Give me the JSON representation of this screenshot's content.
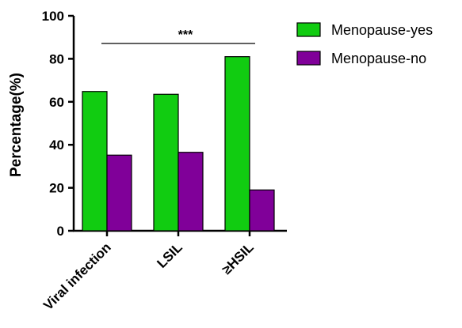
{
  "chart_data": {
    "type": "bar",
    "title": "",
    "xlabel": "",
    "ylabel": "Percentage(%)",
    "ylim": [
      0,
      100
    ],
    "yticks": [
      0,
      20,
      40,
      60,
      80,
      100
    ],
    "categories": [
      "Viral infection",
      "LSIL",
      "≥HSIL"
    ],
    "series": [
      {
        "name": "Menopause-yes",
        "color": "#11cc11",
        "values": [
          64.8,
          63.5,
          81.0
        ]
      },
      {
        "name": "Menopause-no",
        "color": "#800099",
        "values": [
          35.2,
          36.5,
          19.0
        ]
      }
    ],
    "legend_position": "top-right",
    "grid": false,
    "annotations": [
      {
        "text": "***",
        "type": "significance-bracket"
      }
    ]
  }
}
